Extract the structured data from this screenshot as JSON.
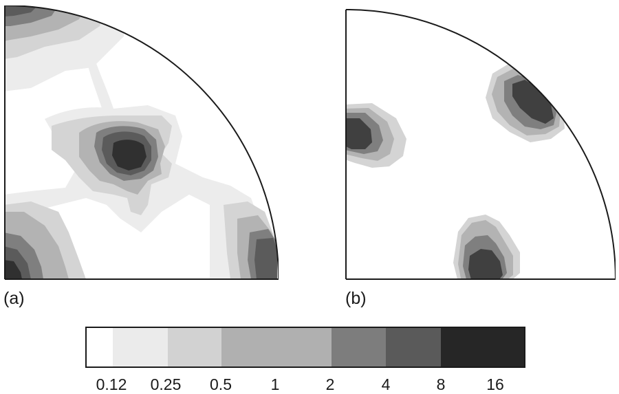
{
  "panels": [
    {
      "id": "a",
      "label": "(a)"
    },
    {
      "id": "b",
      "label": "(b)"
    }
  ],
  "legend": {
    "levels": [
      "0.12",
      "0.25",
      "0.5",
      "1",
      "2",
      "4",
      "8",
      "16"
    ],
    "colors": [
      "#ffffff",
      "#ebebeb",
      "#d2d2d2",
      "#b0b0b0",
      "#7d7d7d",
      "#5a5a5a",
      "#3a3a3a",
      "#262626"
    ]
  }
}
